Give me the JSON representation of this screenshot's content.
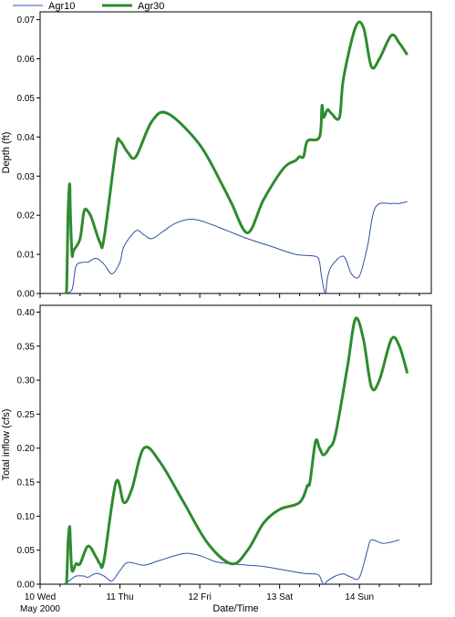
{
  "colors": {
    "agr10": "#2f4fa6",
    "agr30": "#2e8b2e",
    "frame": "#000000",
    "background": "#ffffff"
  },
  "legend": {
    "placement": "top-left",
    "items": [
      "Agr10",
      "Agr30"
    ]
  },
  "chart_data": [
    {
      "type": "line",
      "ylabel": "Depth (ft)",
      "xlabel": "",
      "ylim": [
        0,
        0.072
      ],
      "xlim": [
        0,
        4.9
      ],
      "yticks": [
        "0.00",
        "0.01",
        "0.02",
        "0.03",
        "0.04",
        "0.05",
        "0.06",
        "0.07"
      ],
      "ytick_values": [
        0,
        0.01,
        0.02,
        0.03,
        0.04,
        0.05,
        0.06,
        0.07
      ],
      "grid": false,
      "series": [
        {
          "name": "Agr10",
          "x": [
            0.3,
            0.4,
            0.45,
            0.55,
            0.6,
            0.7,
            0.8,
            0.9,
            1.0,
            1.05,
            1.2,
            1.3,
            1.4,
            1.55,
            1.7,
            1.9,
            2.1,
            2.35,
            2.6,
            2.9,
            3.2,
            3.45,
            3.5,
            3.52,
            3.57,
            3.6,
            3.65,
            3.8,
            3.9,
            4.0,
            4.1,
            4.2,
            4.4,
            4.5,
            4.6
          ],
          "y": [
            0.0,
            0.001,
            0.007,
            0.008,
            0.008,
            0.009,
            0.0075,
            0.005,
            0.008,
            0.012,
            0.016,
            0.015,
            0.014,
            0.016,
            0.018,
            0.019,
            0.018,
            0.016,
            0.014,
            0.012,
            0.01,
            0.0095,
            0.008,
            0.005,
            0.0,
            0.004,
            0.007,
            0.0095,
            0.005,
            0.0045,
            0.012,
            0.022,
            0.023,
            0.023,
            0.0235
          ]
        },
        {
          "name": "Agr30",
          "x": [
            0.3,
            0.33,
            0.35,
            0.37,
            0.38,
            0.4,
            0.42,
            0.5,
            0.55,
            0.6,
            0.65,
            0.75,
            0.8,
            0.95,
            1.0,
            1.1,
            1.2,
            1.4,
            1.6,
            2.0,
            2.3,
            2.4,
            2.6,
            2.8,
            3.05,
            3.2,
            3.25,
            3.3,
            3.35,
            3.5,
            3.53,
            3.55,
            3.6,
            3.65,
            3.75,
            3.8,
            3.95,
            4.05,
            4.15,
            4.25,
            4.4,
            4.5,
            4.6
          ],
          "y": [
            0.0,
            0.0,
            0.02,
            0.028,
            0.02,
            0.01,
            0.011,
            0.014,
            0.021,
            0.021,
            0.019,
            0.013,
            0.014,
            0.037,
            0.039,
            0.036,
            0.035,
            0.044,
            0.046,
            0.038,
            0.027,
            0.023,
            0.0155,
            0.024,
            0.032,
            0.034,
            0.035,
            0.035,
            0.039,
            0.04,
            0.048,
            0.045,
            0.047,
            0.046,
            0.045,
            0.055,
            0.068,
            0.068,
            0.058,
            0.06,
            0.066,
            0.064,
            0.061
          ]
        }
      ]
    },
    {
      "type": "line",
      "ylabel": "Total inflow (cfs)",
      "xlabel": "Date/Time",
      "ylim": [
        0,
        0.41
      ],
      "xlim": [
        0,
        4.9
      ],
      "yticks": [
        "0.00",
        "0.05",
        "0.10",
        "0.15",
        "0.20",
        "0.25",
        "0.30",
        "0.35",
        "0.40"
      ],
      "ytick_values": [
        0,
        0.05,
        0.1,
        0.15,
        0.2,
        0.25,
        0.3,
        0.35,
        0.4
      ],
      "grid": false,
      "xticks": [
        "10 Wed",
        "11 Thu",
        "12 Fri",
        "13 Sat",
        "14 Sun"
      ],
      "xtick_values": [
        0,
        1,
        2,
        3,
        4
      ],
      "xsubtitle": "May 2000",
      "series": [
        {
          "name": "Agr10",
          "x": [
            0.3,
            0.4,
            0.45,
            0.55,
            0.6,
            0.7,
            0.8,
            0.9,
            1.0,
            1.1,
            1.3,
            1.5,
            1.8,
            2.0,
            2.2,
            2.4,
            2.6,
            2.8,
            3.0,
            3.3,
            3.45,
            3.5,
            3.55,
            3.6,
            3.7,
            3.8,
            3.9,
            4.0,
            4.1,
            4.15,
            4.3,
            4.5
          ],
          "y": [
            0.0,
            0.008,
            0.012,
            0.012,
            0.01,
            0.016,
            0.012,
            0.005,
            0.02,
            0.032,
            0.028,
            0.035,
            0.045,
            0.042,
            0.033,
            0.03,
            0.028,
            0.026,
            0.022,
            0.016,
            0.015,
            0.012,
            0.0,
            0.005,
            0.012,
            0.015,
            0.01,
            0.01,
            0.05,
            0.065,
            0.06,
            0.065
          ]
        },
        {
          "name": "Agr30",
          "x": [
            0.3,
            0.33,
            0.35,
            0.37,
            0.38,
            0.4,
            0.45,
            0.5,
            0.6,
            0.7,
            0.75,
            0.8,
            0.95,
            1.05,
            1.15,
            1.3,
            1.5,
            1.8,
            2.1,
            2.4,
            2.6,
            2.8,
            3.0,
            3.25,
            3.35,
            3.38,
            3.45,
            3.5,
            3.55,
            3.62,
            3.7,
            3.85,
            3.95,
            4.05,
            4.15,
            4.25,
            4.4,
            4.5,
            4.6
          ],
          "y": [
            0.0,
            0.0,
            0.06,
            0.085,
            0.06,
            0.02,
            0.03,
            0.03,
            0.056,
            0.04,
            0.03,
            0.035,
            0.15,
            0.12,
            0.14,
            0.2,
            0.18,
            0.12,
            0.06,
            0.03,
            0.05,
            0.09,
            0.11,
            0.12,
            0.145,
            0.15,
            0.21,
            0.2,
            0.19,
            0.2,
            0.22,
            0.32,
            0.39,
            0.36,
            0.29,
            0.3,
            0.36,
            0.35,
            0.31
          ]
        }
      ]
    }
  ]
}
